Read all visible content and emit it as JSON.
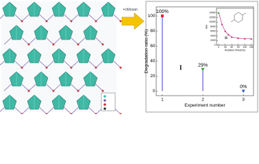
{
  "chart_data": [
    {
      "type": "stem",
      "ylabel": "Degradation ratio (%)",
      "xlabel": "Experiment number",
      "x": [
        1,
        2,
        3
      ],
      "values": [
        100,
        29,
        0
      ],
      "value_labels": [
        "100%",
        "29%",
        "0%"
      ],
      "colors": [
        "#e02020",
        "#2a9a2a",
        "#2f4fc4"
      ],
      "stem_color": "#3a3acc",
      "xlim": [
        0.85,
        3.25
      ],
      "xticks": [
        1,
        2,
        3
      ],
      "ylim": [
        -6,
        112
      ],
      "yticks": [
        0,
        20,
        40,
        60,
        80,
        100
      ],
      "annotations": [
        "I"
      ],
      "arrow_label": "+chitosan"
    },
    {
      "type": "line",
      "ylabel": "Mw",
      "xlabel": "Reaction time(min)",
      "x": [
        0,
        15,
        30,
        45,
        60,
        90,
        120,
        150
      ],
      "values": [
        14000,
        9000,
        6000,
        4500,
        3500,
        3000,
        2800,
        2700
      ],
      "color": "#c0307e",
      "xlim": [
        -10,
        160
      ],
      "xticks": [
        0,
        30,
        60,
        90,
        120,
        150
      ],
      "ylim": [
        0,
        16000
      ],
      "yticks": [
        0,
        2000,
        4000,
        6000,
        8000,
        10000,
        12000,
        14000
      ],
      "annotations": [
        "II"
      ]
    }
  ]
}
